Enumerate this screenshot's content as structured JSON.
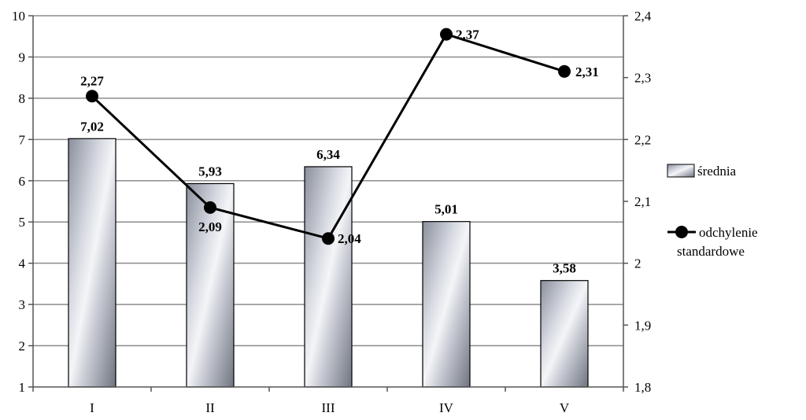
{
  "chart_data": {
    "type": "bar",
    "categories": [
      "I",
      "II",
      "III",
      "IV",
      "V"
    ],
    "series": [
      {
        "name": "średnia",
        "type": "bar",
        "axis": "left",
        "values": [
          7.02,
          5.93,
          6.34,
          5.01,
          3.58
        ],
        "labels": [
          "7,02",
          "5,93",
          "6,34",
          "5,01",
          "3,58"
        ]
      },
      {
        "name": "odchylenie standardowe",
        "name_lines": [
          "odchylenie",
          "standardowe"
        ],
        "type": "line",
        "axis": "right",
        "values": [
          2.27,
          2.09,
          2.04,
          2.37,
          2.31
        ],
        "labels": [
          "2,27",
          "2,09",
          "2,04",
          "2,37",
          "2,31"
        ]
      }
    ],
    "y_left": {
      "range": [
        1,
        10
      ],
      "ticks": [
        1,
        2,
        3,
        4,
        5,
        6,
        7,
        8,
        9,
        10
      ],
      "tick_labels": [
        "1",
        "2",
        "3",
        "4",
        "5",
        "6",
        "7",
        "8",
        "9",
        "10"
      ]
    },
    "y_right": {
      "range": [
        1.8,
        2.4
      ],
      "ticks": [
        1.8,
        1.9,
        2.0,
        2.1,
        2.2,
        2.3,
        2.4
      ],
      "tick_labels": [
        "1,8",
        "1,9",
        "2",
        "2,1",
        "2,2",
        "2,3",
        "2,4"
      ]
    },
    "grid": true,
    "legend_position": "right",
    "colors": {
      "bar_dark": "#7a7f8c",
      "bar_light": "#eef0f4",
      "line": "#000000",
      "grid": "#8c8c8c"
    }
  }
}
